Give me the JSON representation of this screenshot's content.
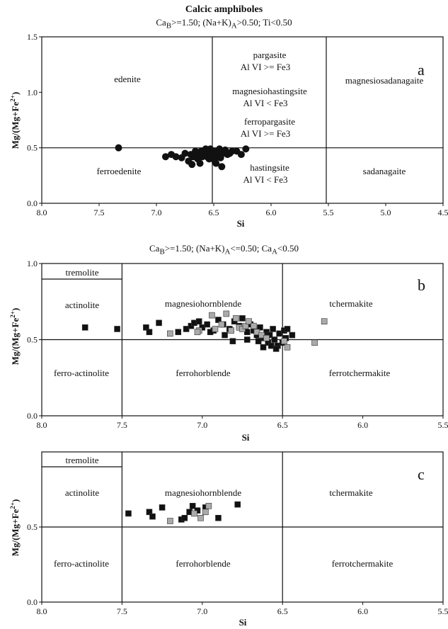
{
  "figure": {
    "title": "Calcic amphiboles",
    "header_a": "Ca<sub>B</sub>>=1.50; (Na+K)<sub>A</sub>>0.50; Ti<0.50",
    "header_b": "Ca<sub>B</sub>>=1.50; (Na+K)<sub>A</sub><=0.50; Ca<sub>A</sub><0.50"
  },
  "chart_data": [
    {
      "type": "scatter",
      "panel": "a",
      "xlabel": "Si",
      "ylabel": "Mg/(Mg+Fe2+)",
      "xlim": [
        8.0,
        4.5
      ],
      "ylim": [
        0.0,
        1.5
      ],
      "xticks": [
        "8.0",
        "7.5",
        "7.0",
        "6.5",
        "6.0",
        "5.5",
        "5.0",
        "4.5"
      ],
      "yticks": [
        "0.0",
        "0.5",
        "1.0",
        "1.5"
      ],
      "fields": [
        "edenite",
        "pargasite",
        "Al VI >= Fe3",
        "magnesiohastingsite",
        "Al VI < Fe3",
        "ferropargasite",
        "Al VI >= Fe3",
        "magnesiosadanagaite",
        "ferroedenite",
        "hastingsite",
        "Al VI < Fe3",
        "sadanagaite"
      ],
      "series": [
        {
          "marker": "circle",
          "color": "#111111",
          "points": [
            [
              7.33,
              0.5
            ],
            [
              6.92,
              0.42
            ],
            [
              6.87,
              0.44
            ],
            [
              6.83,
              0.42
            ],
            [
              6.78,
              0.41
            ],
            [
              6.75,
              0.45
            ],
            [
              6.72,
              0.38
            ],
            [
              6.7,
              0.44
            ],
            [
              6.68,
              0.42
            ],
            [
              6.66,
              0.47
            ],
            [
              6.64,
              0.4
            ],
            [
              6.62,
              0.36
            ],
            [
              6.6,
              0.42
            ],
            [
              6.58,
              0.46
            ],
            [
              6.57,
              0.49
            ],
            [
              6.55,
              0.44
            ],
            [
              6.54,
              0.4
            ],
            [
              6.53,
              0.49
            ],
            [
              6.52,
              0.46
            ],
            [
              6.51,
              0.43
            ],
            [
              6.5,
              0.47
            ],
            [
              6.49,
              0.38
            ],
            [
              6.48,
              0.42
            ],
            [
              6.47,
              0.47
            ],
            [
              6.46,
              0.45
            ],
            [
              6.45,
              0.49
            ],
            [
              6.44,
              0.41
            ],
            [
              6.43,
              0.33
            ],
            [
              6.42,
              0.45
            ],
            [
              6.4,
              0.48
            ],
            [
              6.38,
              0.44
            ],
            [
              6.36,
              0.45
            ],
            [
              6.34,
              0.47
            ],
            [
              6.3,
              0.47
            ],
            [
              6.26,
              0.44
            ],
            [
              6.22,
              0.49
            ],
            [
              6.63,
              0.44
            ],
            [
              6.56,
              0.42
            ],
            [
              6.61,
              0.47
            ],
            [
              6.69,
              0.35
            ],
            [
              6.48,
              0.36
            ]
          ]
        }
      ]
    },
    {
      "type": "scatter",
      "panel": "b",
      "xlabel": "Si",
      "ylabel": "Mg/(Mg+Fe2+)",
      "xlim": [
        8.0,
        5.5
      ],
      "ylim": [
        0.0,
        1.0
      ],
      "xticks": [
        "8.0",
        "7.5",
        "7.0",
        "6.5",
        "6.0",
        "5.5"
      ],
      "yticks": [
        "0.0",
        "0.5",
        "1.0"
      ],
      "fields": [
        "tremolite",
        "actinolite",
        "magnesiohornblende",
        "tchermakite",
        "ferro-actinolite",
        "ferrohorblende",
        "ferrotchermakite"
      ],
      "series": [
        {
          "marker": "square",
          "color": "#111111",
          "points": [
            [
              7.73,
              0.58
            ],
            [
              7.53,
              0.57
            ],
            [
              7.35,
              0.58
            ],
            [
              7.33,
              0.55
            ],
            [
              7.27,
              0.61
            ],
            [
              7.1,
              0.57
            ],
            [
              7.07,
              0.59
            ],
            [
              7.05,
              0.61
            ],
            [
              7.02,
              0.62
            ],
            [
              7.0,
              0.58
            ],
            [
              6.97,
              0.6
            ],
            [
              6.93,
              0.56
            ],
            [
              6.9,
              0.63
            ],
            [
              6.87,
              0.6
            ],
            [
              6.83,
              0.57
            ],
            [
              6.8,
              0.62
            ],
            [
              6.77,
              0.59
            ],
            [
              6.75,
              0.64
            ],
            [
              6.72,
              0.55
            ],
            [
              6.7,
              0.6
            ],
            [
              6.68,
              0.56
            ],
            [
              6.66,
              0.53
            ],
            [
              6.64,
              0.58
            ],
            [
              6.62,
              0.51
            ],
            [
              6.6,
              0.55
            ],
            [
              6.59,
              0.48
            ],
            [
              6.58,
              0.53
            ],
            [
              6.57,
              0.46
            ],
            [
              6.56,
              0.57
            ],
            [
              6.55,
              0.5
            ],
            [
              6.53,
              0.46
            ],
            [
              6.52,
              0.54
            ],
            [
              6.5,
              0.48
            ],
            [
              6.49,
              0.56
            ],
            [
              6.48,
              0.51
            ],
            [
              6.47,
              0.57
            ],
            [
              6.44,
              0.53
            ],
            [
              6.62,
              0.45
            ],
            [
              6.54,
              0.44
            ],
            [
              6.72,
              0.5
            ],
            [
              6.65,
              0.49
            ],
            [
              6.81,
              0.49
            ],
            [
              6.95,
              0.55
            ],
            [
              7.15,
              0.55
            ],
            [
              6.86,
              0.53
            ]
          ]
        },
        {
          "marker": "square",
          "color": "#aaaaaa",
          "points": [
            [
              7.2,
              0.54
            ],
            [
              7.02,
              0.56
            ],
            [
              6.92,
              0.57
            ],
            [
              6.88,
              0.6
            ],
            [
              6.85,
              0.67
            ],
            [
              6.82,
              0.56
            ],
            [
              6.79,
              0.64
            ],
            [
              6.77,
              0.58
            ],
            [
              6.75,
              0.57
            ],
            [
              6.73,
              0.59
            ],
            [
              6.71,
              0.62
            ],
            [
              6.68,
              0.59
            ],
            [
              6.66,
              0.55
            ],
            [
              6.63,
              0.53
            ],
            [
              6.6,
              0.51
            ],
            [
              6.49,
              0.49
            ],
            [
              6.47,
              0.45
            ],
            [
              6.3,
              0.48
            ],
            [
              6.24,
              0.62
            ],
            [
              6.94,
              0.66
            ],
            [
              7.03,
              0.55
            ]
          ]
        }
      ]
    },
    {
      "type": "scatter",
      "panel": "c",
      "xlabel": "Si",
      "ylabel": "Mg/(Mg+Fe2+)",
      "xlim": [
        8.0,
        5.5
      ],
      "ylim": [
        0.0,
        1.0
      ],
      "xticks": [
        "8.0",
        "7.5",
        "7.0",
        "6.5",
        "6.0",
        "5.5"
      ],
      "yticks": [
        "0.0",
        "0.5"
      ],
      "fields": [
        "tremolite",
        "actinolite",
        "magnesiohornblende",
        "tchermakite",
        "ferro-actinolite",
        "ferrohorblende",
        "ferrotchermakite"
      ],
      "series": [
        {
          "marker": "square",
          "color": "#111111",
          "points": [
            [
              7.46,
              0.59
            ],
            [
              7.33,
              0.6
            ],
            [
              7.31,
              0.57
            ],
            [
              7.25,
              0.63
            ],
            [
              7.13,
              0.55
            ],
            [
              7.11,
              0.56
            ],
            [
              7.08,
              0.6
            ],
            [
              7.06,
              0.64
            ],
            [
              7.03,
              0.61
            ],
            [
              6.98,
              0.63
            ],
            [
              6.9,
              0.56
            ],
            [
              6.78,
              0.65
            ]
          ]
        },
        {
          "marker": "square",
          "color": "#aaaaaa",
          "points": [
            [
              7.2,
              0.54
            ],
            [
              7.05,
              0.59
            ],
            [
              7.01,
              0.56
            ],
            [
              6.98,
              0.6
            ],
            [
              6.96,
              0.64
            ]
          ]
        }
      ]
    }
  ]
}
